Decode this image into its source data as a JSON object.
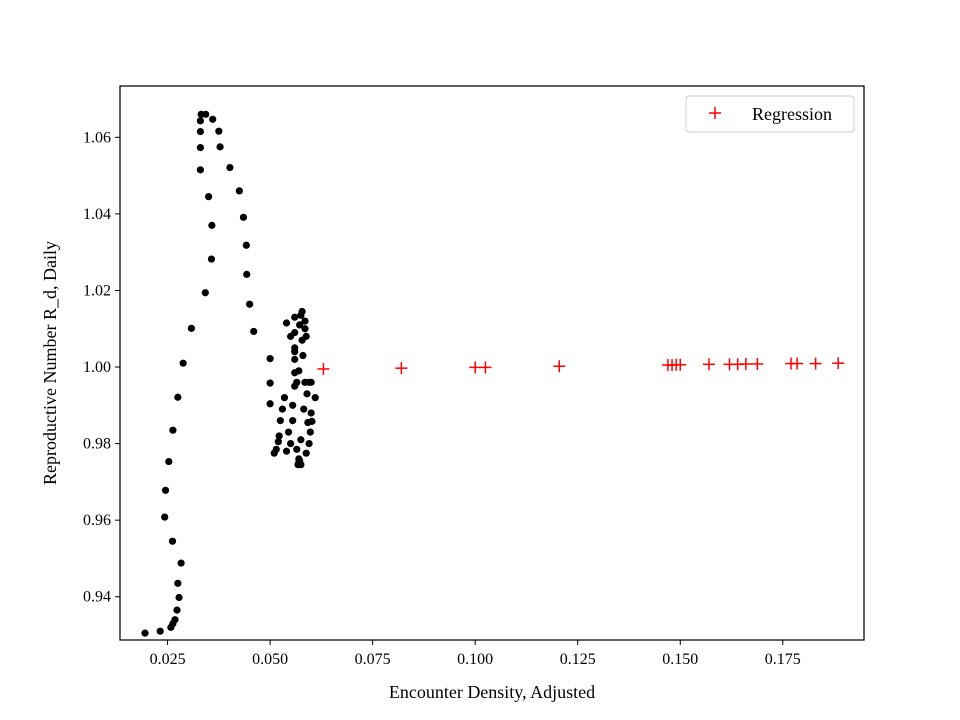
{
  "chart_data": {
    "type": "scatter",
    "xlabel": "Encounter Density, Adjusted",
    "ylabel": "Reproductive Number R_d, Daily",
    "xlim": [
      0.0134,
      0.1948
    ],
    "ylim": [
      0.9287,
      1.0734
    ],
    "x_ticks": [
      0.025,
      0.05,
      0.075,
      0.1,
      0.125,
      0.15,
      0.175
    ],
    "x_tick_labels": [
      "0.025",
      "0.050",
      "0.075",
      "0.100",
      "0.125",
      "0.150",
      "0.175"
    ],
    "y_ticks": [
      0.94,
      0.96,
      0.98,
      1.0,
      1.02,
      1.04,
      1.06
    ],
    "y_tick_labels": [
      "0.94",
      "0.96",
      "0.98",
      "1.00",
      "1.02",
      "1.04",
      "1.06"
    ],
    "grid": false,
    "legend": {
      "placement": "top-right",
      "entries": [
        "Regression"
      ]
    },
    "series": [
      {
        "marker": "dot",
        "color": "#000000",
        "points": [
          [
            0.0195,
            0.9305
          ],
          [
            0.0232,
            0.931
          ],
          [
            0.0258,
            0.932
          ],
          [
            0.0263,
            0.933
          ],
          [
            0.0268,
            0.934
          ],
          [
            0.0273,
            0.9365
          ],
          [
            0.0278,
            0.9398
          ],
          [
            0.0275,
            0.9435
          ],
          [
            0.0283,
            0.9488
          ],
          [
            0.0262,
            0.9545
          ],
          [
            0.0243,
            0.9608
          ],
          [
            0.0245,
            0.9678
          ],
          [
            0.0253,
            0.9753
          ],
          [
            0.0263,
            0.9835
          ],
          [
            0.0275,
            0.9921
          ],
          [
            0.0288,
            1.001
          ],
          [
            0.0308,
            1.0101
          ],
          [
            0.0342,
            1.0194
          ],
          [
            0.0357,
            1.0282
          ],
          [
            0.0358,
            1.037
          ],
          [
            0.035,
            1.0445
          ],
          [
            0.033,
            1.0515
          ],
          [
            0.033,
            1.0573
          ],
          [
            0.033,
            1.0615
          ],
          [
            0.033,
            1.0643
          ],
          [
            0.0332,
            1.066
          ],
          [
            0.0343,
            1.066
          ],
          [
            0.036,
            1.0647
          ],
          [
            0.0375,
            1.0616
          ],
          [
            0.0378,
            1.0575
          ],
          [
            0.0402,
            1.0521
          ],
          [
            0.0425,
            1.046
          ],
          [
            0.0435,
            1.0391
          ],
          [
            0.0442,
            1.0318
          ],
          [
            0.0443,
            1.0242
          ],
          [
            0.045,
            1.0164
          ],
          [
            0.046,
            1.0093
          ],
          [
            0.05,
            1.0022
          ],
          [
            0.05,
            0.9958
          ],
          [
            0.05,
            0.9904
          ],
          [
            0.051,
            0.9775
          ],
          [
            0.0515,
            0.9785
          ],
          [
            0.052,
            0.9805
          ],
          [
            0.0522,
            0.982
          ],
          [
            0.0525,
            0.986
          ],
          [
            0.053,
            0.989
          ],
          [
            0.0535,
            0.992
          ],
          [
            0.054,
            0.978
          ],
          [
            0.0545,
            0.983
          ],
          [
            0.055,
            0.98
          ],
          [
            0.0555,
            0.986
          ],
          [
            0.056,
            0.995
          ],
          [
            0.056,
            0.9985
          ],
          [
            0.056,
            1.002
          ],
          [
            0.056,
            1.004
          ],
          [
            0.056,
            1.005
          ],
          [
            0.056,
            1.009
          ],
          [
            0.056,
            1.013
          ],
          [
            0.0565,
            0.9785
          ],
          [
            0.0568,
            0.9745
          ],
          [
            0.057,
            0.976
          ],
          [
            0.057,
            0.999
          ],
          [
            0.0572,
            1.011
          ],
          [
            0.0575,
            0.981
          ],
          [
            0.0575,
            1.0135
          ],
          [
            0.0578,
            1.0145
          ],
          [
            0.0578,
            1.007
          ],
          [
            0.058,
            1.003
          ],
          [
            0.0582,
            0.989
          ],
          [
            0.0585,
            0.996
          ],
          [
            0.0585,
            1.01
          ],
          [
            0.0585,
            1.012
          ],
          [
            0.0588,
            1.008
          ],
          [
            0.0588,
            0.9775
          ],
          [
            0.059,
            0.993
          ],
          [
            0.0592,
            0.9855
          ],
          [
            0.0595,
            0.996
          ],
          [
            0.0595,
            0.98
          ],
          [
            0.0598,
            0.983
          ],
          [
            0.06,
            0.988
          ],
          [
            0.055,
            1.008
          ],
          [
            0.054,
            1.0115
          ],
          [
            0.0575,
            0.9745
          ],
          [
            0.0572,
            0.9755
          ],
          [
            0.057,
            0.975
          ],
          [
            0.0565,
            0.996
          ],
          [
            0.0555,
            0.99
          ],
          [
            0.06,
            0.996
          ],
          [
            0.061,
            0.992
          ],
          [
            0.0602,
            0.9858
          ]
        ]
      },
      {
        "name": "Regression",
        "marker": "plus",
        "color": "#ff0000",
        "points": [
          [
            0.063,
            0.9995
          ],
          [
            0.082,
            0.9997
          ],
          [
            0.1,
            0.9999
          ],
          [
            0.1025,
            0.9999
          ],
          [
            0.1205,
            1.0002
          ],
          [
            0.147,
            1.0005
          ],
          [
            0.148,
            1.0005
          ],
          [
            0.149,
            1.0006
          ],
          [
            0.15,
            1.0006
          ],
          [
            0.157,
            1.0007
          ],
          [
            0.162,
            1.0007
          ],
          [
            0.164,
            1.0007
          ],
          [
            0.166,
            1.0008
          ],
          [
            0.1688,
            1.0008
          ],
          [
            0.177,
            1.0009
          ],
          [
            0.1785,
            1.0009
          ],
          [
            0.183,
            1.0009
          ],
          [
            0.1885,
            1.001
          ]
        ]
      }
    ]
  }
}
